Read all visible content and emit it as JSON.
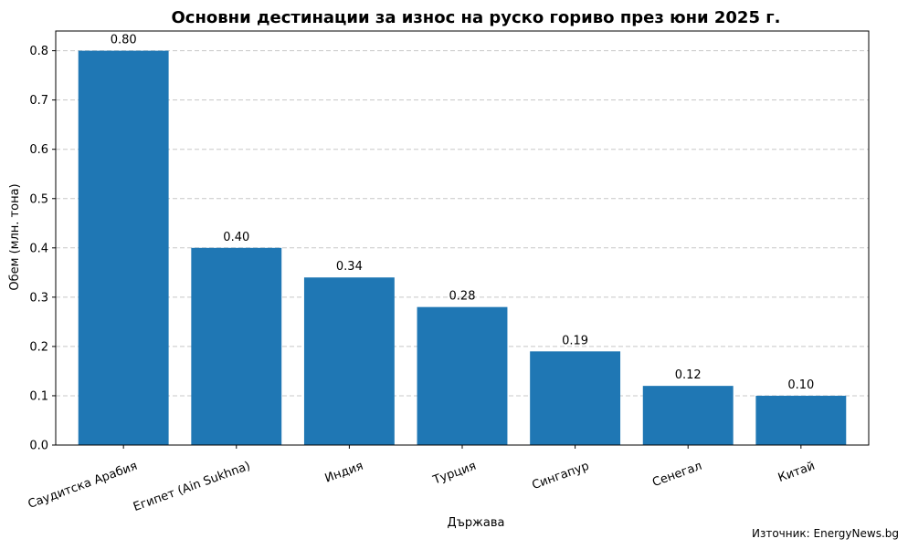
{
  "chart_data": {
    "type": "bar",
    "title": "Основни дестинации за износ на руско гориво през юни 2025 г.",
    "xlabel": "Държава",
    "ylabel": "Обем (млн. тона)",
    "categories": [
      "Саудитска Арабия",
      "Египет (Ain Sukhna)",
      "Индия",
      "Турция",
      "Сингапур",
      "Сенегал",
      "Китай"
    ],
    "values": [
      0.8,
      0.4,
      0.34,
      0.28,
      0.19,
      0.12,
      0.1
    ],
    "value_labels": [
      "0.80",
      "0.40",
      "0.34",
      "0.28",
      "0.19",
      "0.12",
      "0.10"
    ],
    "ylim": [
      0,
      0.84
    ],
    "yticks": [
      0.0,
      0.1,
      0.2,
      0.3,
      0.4,
      0.5,
      0.6,
      0.7,
      0.8
    ],
    "ytick_labels": [
      "0.0",
      "0.1",
      "0.2",
      "0.3",
      "0.4",
      "0.5",
      "0.6",
      "0.7",
      "0.8"
    ],
    "grid": "y-dashed",
    "bar_color": "#1f77b4",
    "source": "Източник: EnergyNews.bg"
  }
}
